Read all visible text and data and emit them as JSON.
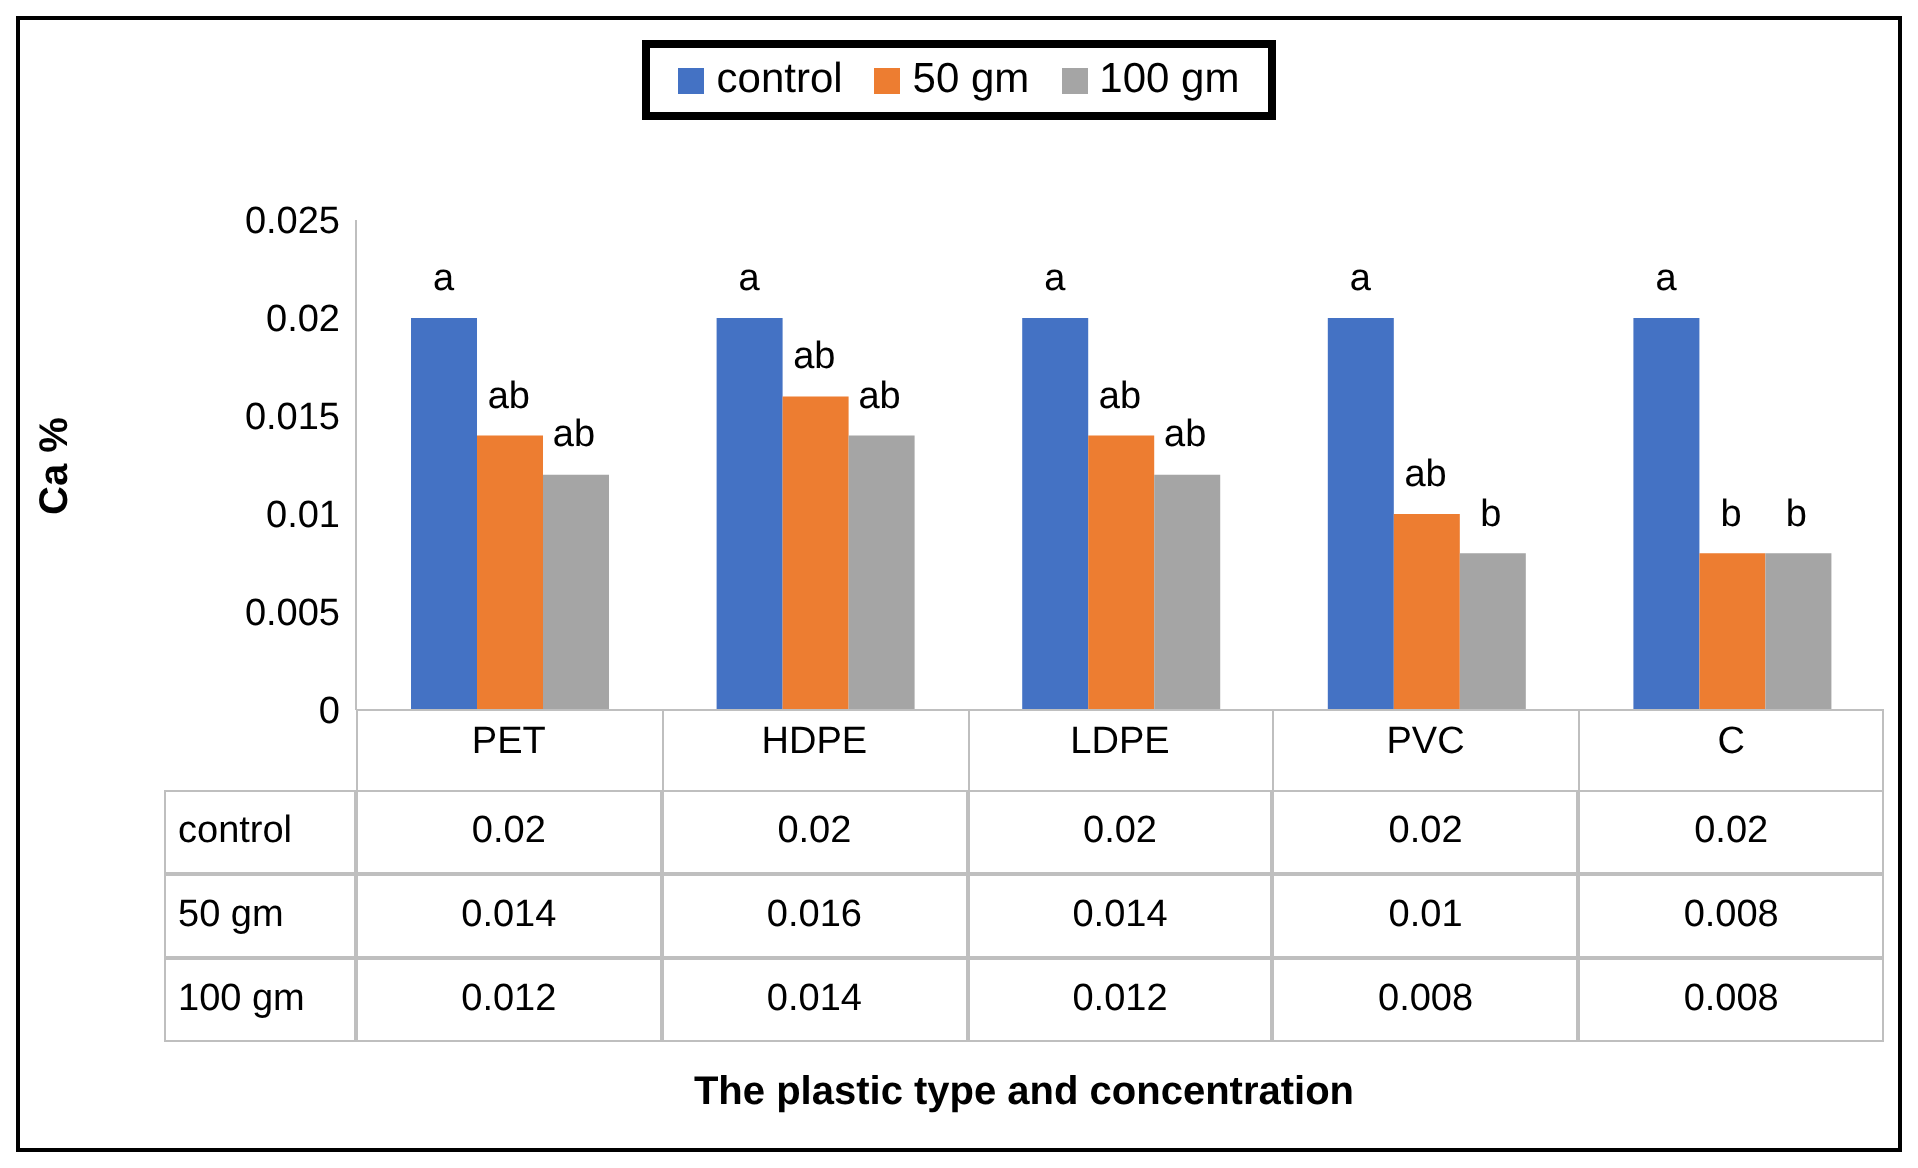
{
  "chart_data": {
    "type": "bar",
    "ylabel": "Ca %",
    "annotations": [
      "a",
      "ab",
      "ab",
      "a",
      "ab",
      "ab",
      "a",
      "ab",
      "ab",
      "a",
      "ab",
      "b",
      "a",
      "b",
      "b",
      "The plastic type and concentration"
    ],
    "categories": [
      "PET",
      "HDPE",
      "LDPE",
      "PVC",
      "C"
    ],
    "series": [
      {
        "name": "control",
        "color": "#4472c4",
        "values": [
          0.02,
          0.02,
          0.02,
          0.02,
          0.02
        ]
      },
      {
        "name": "50 gm",
        "color": "#ed7d31",
        "values": [
          0.014,
          0.016,
          0.014,
          0.01,
          0.008
        ]
      },
      {
        "name": "100 gm",
        "color": "#a5a5a5",
        "values": [
          0.012,
          0.014,
          0.012,
          0.008,
          0.008
        ]
      }
    ],
    "ylim": [
      0,
      0.025
    ],
    "yticks": [
      0,
      0.005,
      0.01,
      0.015,
      0.02,
      0.025
    ],
    "grid": false,
    "legend": "top",
    "data_labels": true
  }
}
